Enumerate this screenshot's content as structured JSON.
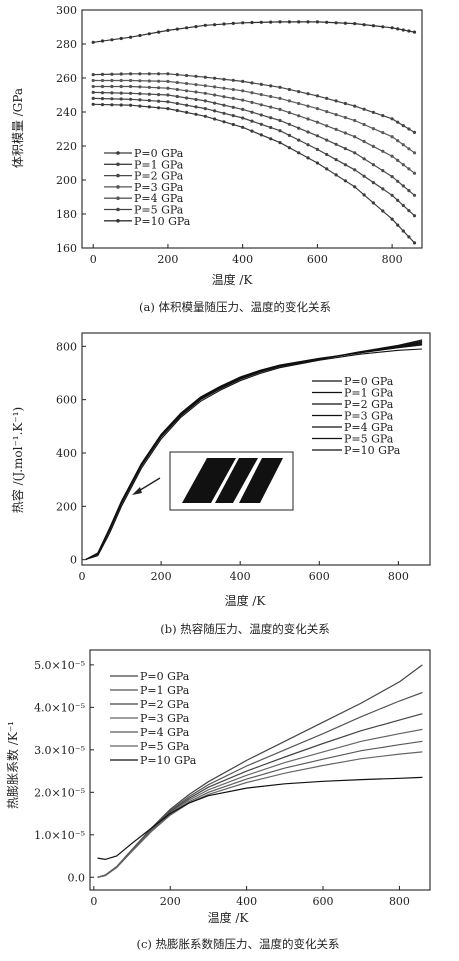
{
  "chart_data": [
    {
      "type": "line",
      "caption": "(a) 体积模量随压力、温度的变化关系",
      "xlabel": "温度 /K",
      "ylabel": "体积模量 /GPa",
      "xlim": [
        -30,
        880
      ],
      "ylim": [
        160,
        300
      ],
      "xticks": [
        "0",
        "200",
        "400",
        "600",
        "800"
      ],
      "yticks": [
        "160",
        "180",
        "200",
        "220",
        "240",
        "260",
        "280",
        "300"
      ],
      "legend_position": "bottom-left",
      "x": [
        0,
        100,
        200,
        300,
        400,
        500,
        600,
        700,
        800,
        860
      ],
      "series": [
        {
          "name": "P=0 GPa",
          "values": [
            244.5,
            244,
            242,
            237.5,
            231,
            222,
            210,
            196,
            177,
            163
          ]
        },
        {
          "name": "P=1 GPa",
          "values": [
            248,
            247.5,
            246,
            242,
            236.5,
            229,
            218,
            206,
            191,
            179
          ]
        },
        {
          "name": "P=2 GPa",
          "values": [
            251.5,
            251,
            250,
            246.5,
            241.5,
            235,
            226,
            216,
            202,
            191
          ]
        },
        {
          "name": "P=3 GPa",
          "values": [
            255,
            255,
            254,
            251,
            247,
            241.5,
            234,
            225.5,
            214,
            204
          ]
        },
        {
          "name": "P=4 GPa",
          "values": [
            258.5,
            258.5,
            258,
            255.5,
            252.5,
            248,
            242,
            235,
            225.5,
            216
          ]
        },
        {
          "name": "P=5 GPa",
          "values": [
            262,
            262.5,
            262.5,
            260.5,
            258,
            254.5,
            249.5,
            243.5,
            236,
            228
          ]
        },
        {
          "name": "P=10 GPa",
          "values": [
            281,
            284,
            288,
            291,
            292.5,
            293,
            293,
            292,
            289.5,
            287
          ]
        }
      ]
    },
    {
      "type": "line",
      "caption": "(b) 热容随压力、温度的变化关系",
      "xlabel": "温度 /K",
      "ylabel": "热容 /(J.mol⁻¹.K⁻¹)",
      "xlim": [
        0,
        880
      ],
      "ylim": [
        -20,
        850
      ],
      "xticks": [
        "0",
        "200",
        "400",
        "600",
        "800"
      ],
      "yticks": [
        "0",
        "200",
        "400",
        "600",
        "800"
      ],
      "legend_position": "right",
      "x": [
        10,
        40,
        70,
        100,
        150,
        200,
        250,
        300,
        350,
        400,
        450,
        500,
        600,
        700,
        800,
        860
      ],
      "series": [
        {
          "name": "P=0 GPa",
          "values": [
            1,
            25,
            120,
            220,
            360,
            470,
            550,
            610,
            650,
            685,
            710,
            730,
            755,
            775,
            795,
            805
          ]
        },
        {
          "name": "P=1 GPa",
          "values": [
            1,
            24,
            118,
            218,
            358,
            468,
            548,
            608,
            648,
            683,
            708,
            728,
            754,
            775,
            796,
            808
          ]
        },
        {
          "name": "P=2 GPa",
          "values": [
            1,
            23,
            116,
            216,
            356,
            466,
            546,
            606,
            646,
            681,
            706,
            727,
            753,
            776,
            798,
            812
          ]
        },
        {
          "name": "P=3 GPa",
          "values": [
            1,
            22,
            114,
            214,
            354,
            464,
            544,
            604,
            644,
            679,
            705,
            726,
            752,
            777,
            800,
            816
          ]
        },
        {
          "name": "P=4 GPa",
          "values": [
            1,
            21,
            112,
            212,
            352,
            462,
            542,
            602,
            642,
            677,
            704,
            725,
            752,
            778,
            802,
            820
          ]
        },
        {
          "name": "P=5 GPa",
          "values": [
            1,
            20,
            110,
            210,
            350,
            460,
            540,
            600,
            641,
            676,
            703,
            724,
            751,
            779,
            804,
            824
          ]
        },
        {
          "name": "P=10 GPa",
          "values": [
            1,
            15,
            100,
            200,
            342,
            452,
            534,
            594,
            636,
            671,
            698,
            720,
            748,
            770,
            785,
            790
          ]
        }
      ]
    },
    {
      "type": "line",
      "caption": "(c) 热膨胀系数随压力、温度的变化关系",
      "xlabel": "温度 /K",
      "ylabel": "热膨胀系数 /K⁻¹",
      "xlim": [
        -10,
        880
      ],
      "ylim": [
        -0.3,
        5.35
      ],
      "ytick_unit": "×10⁻⁵",
      "xticks": [
        "0",
        "200",
        "400",
        "600",
        "800"
      ],
      "yticks": [
        "0.0",
        "1.0×10⁻⁵",
        "2.0×10⁻⁵",
        "3.0×10⁻⁵",
        "4.0×10⁻⁵",
        "5.0×10⁻⁵"
      ],
      "legend_position": "top-left",
      "x": [
        10,
        30,
        60,
        100,
        150,
        200,
        250,
        300,
        400,
        500,
        600,
        700,
        800,
        860
      ],
      "series": [
        {
          "name": "P=0 GPa",
          "values": [
            0.0,
            0.05,
            0.25,
            0.65,
            1.15,
            1.6,
            1.95,
            2.25,
            2.75,
            3.2,
            3.65,
            4.1,
            4.6,
            5.0
          ]
        },
        {
          "name": "P=1 GPa",
          "values": [
            0.0,
            0.05,
            0.25,
            0.65,
            1.13,
            1.57,
            1.9,
            2.18,
            2.62,
            3.0,
            3.38,
            3.78,
            4.15,
            4.35
          ]
        },
        {
          "name": "P=2 GPa",
          "values": [
            0.0,
            0.05,
            0.24,
            0.64,
            1.11,
            1.54,
            1.86,
            2.12,
            2.5,
            2.83,
            3.15,
            3.45,
            3.7,
            3.85
          ]
        },
        {
          "name": "P=3 GPa",
          "values": [
            0.0,
            0.04,
            0.24,
            0.63,
            1.1,
            1.51,
            1.82,
            2.06,
            2.4,
            2.7,
            2.95,
            3.2,
            3.38,
            3.48
          ]
        },
        {
          "name": "P=4 GPa",
          "values": [
            0.0,
            0.04,
            0.23,
            0.62,
            1.08,
            1.48,
            1.78,
            2.0,
            2.31,
            2.57,
            2.78,
            2.98,
            3.12,
            3.2
          ]
        },
        {
          "name": "P=5 GPa",
          "values": [
            0.0,
            0.04,
            0.23,
            0.61,
            1.07,
            1.46,
            1.75,
            1.95,
            2.23,
            2.45,
            2.63,
            2.79,
            2.9,
            2.95
          ]
        },
        {
          "name": "P=10 GPa",
          "values": [
            0.45,
            0.42,
            0.5,
            0.8,
            1.15,
            1.5,
            1.75,
            1.92,
            2.1,
            2.2,
            2.26,
            2.3,
            2.33,
            2.35
          ]
        }
      ]
    }
  ]
}
